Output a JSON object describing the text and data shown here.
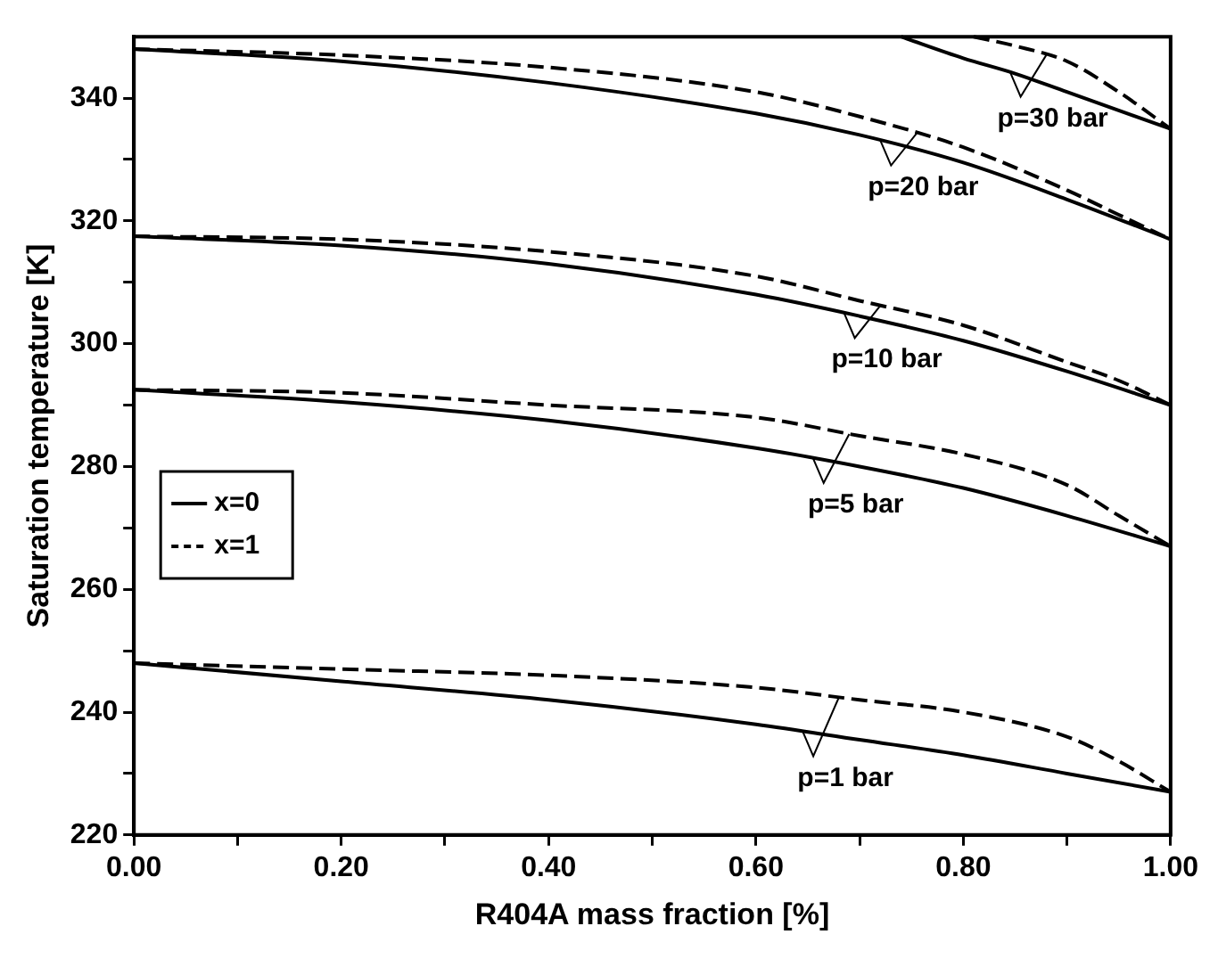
{
  "chart_data": {
    "type": "line",
    "xlabel": "R404A mass fraction [%]",
    "ylabel": "Saturation temperature [K]",
    "xlim": [
      0,
      1
    ],
    "ylim": [
      220,
      350
    ],
    "xticks": [
      {
        "value": 0,
        "label": "0.00"
      },
      {
        "value": 0.1,
        "label": null
      },
      {
        "value": 0.2,
        "label": "0.20"
      },
      {
        "value": 0.3,
        "label": null
      },
      {
        "value": 0.4,
        "label": "0.40"
      },
      {
        "value": 0.5,
        "label": null
      },
      {
        "value": 0.6,
        "label": "0.60"
      },
      {
        "value": 0.7,
        "label": null
      },
      {
        "value": 0.8,
        "label": "0.80"
      },
      {
        "value": 0.9,
        "label": null
      },
      {
        "value": 1,
        "label": "1.00"
      }
    ],
    "yticks": [
      220,
      {
        "value": 230,
        "label": null
      },
      240,
      {
        "value": 250,
        "label": null
      },
      260,
      {
        "value": 270,
        "label": null
      },
      280,
      {
        "value": 290,
        "label": null
      },
      300,
      {
        "value": 310,
        "label": null
      },
      320,
      {
        "value": 330,
        "label": null
      },
      340
    ],
    "grid": false,
    "legend": "left",
    "marker": "none",
    "series": [
      {
        "name": "x=0",
        "color": "#000000",
        "line_style": "solid",
        "x": [
          0,
          0.2,
          0.4,
          0.6,
          0.7,
          0.8,
          0.9,
          1
        ],
        "values": [
          248,
          245,
          242,
          238,
          235.5,
          233,
          230,
          227
        ]
      },
      {
        "name": "x=1",
        "color": "#000000",
        "line_style": "dashed",
        "x": [
          0,
          0.2,
          0.4,
          0.6,
          0.7,
          0.8,
          0.9,
          0.95,
          1
        ],
        "values": [
          248,
          247,
          246,
          244,
          242,
          240,
          236,
          232,
          227
        ]
      },
      {
        "color": "#000000",
        "line_style": "solid",
        "x": [
          0,
          0.2,
          0.4,
          0.6,
          0.7,
          0.8,
          0.9,
          1
        ],
        "values": [
          292.5,
          290.5,
          287.5,
          283,
          280,
          276.5,
          272,
          267
        ]
      },
      {
        "color": "#000000",
        "line_style": "dashed",
        "x": [
          0,
          0.2,
          0.4,
          0.6,
          0.7,
          0.8,
          0.9,
          0.95,
          1
        ],
        "values": [
          292.5,
          292,
          290,
          288,
          285,
          282,
          277,
          272,
          267
        ]
      },
      {
        "color": "#000000",
        "line_style": "solid",
        "x": [
          0,
          0.2,
          0.4,
          0.6,
          0.7,
          0.8,
          0.9,
          1
        ],
        "values": [
          317.5,
          316,
          313,
          308,
          304.5,
          300.5,
          295.5,
          290
        ]
      },
      {
        "color": "#000000",
        "line_style": "dashed",
        "x": [
          0,
          0.2,
          0.4,
          0.6,
          0.7,
          0.8,
          0.9,
          0.95,
          1
        ],
        "values": [
          317.5,
          317,
          315,
          311,
          307,
          303,
          297,
          294,
          290
        ]
      },
      {
        "color": "#000000",
        "line_style": "solid",
        "x": [
          0,
          0.2,
          0.4,
          0.6,
          0.7,
          0.8,
          0.9,
          1
        ],
        "values": [
          348,
          346,
          342.5,
          337.5,
          334,
          329.5,
          323.5,
          317
        ]
      },
      {
        "color": "#000000",
        "line_style": "dashed",
        "x": [
          0,
          0.2,
          0.4,
          0.6,
          0.7,
          0.8,
          0.9,
          0.95,
          1
        ],
        "values": [
          348,
          347,
          345,
          341,
          337,
          332,
          325,
          321,
          317
        ]
      },
      {
        "color": "#000000",
        "line_style": "solid",
        "x": [
          0.74,
          0.8,
          0.85,
          0.9,
          1
        ],
        "values": [
          350,
          346.5,
          344,
          341,
          335
        ]
      },
      {
        "color": "#000000",
        "line_style": "dashed",
        "x": [
          0.81,
          0.85,
          0.9,
          0.95,
          1
        ],
        "values": [
          350,
          348.5,
          346,
          341,
          335
        ]
      }
    ],
    "annotations": [
      {
        "text": "p=1 bar",
        "x": 0.645,
        "y": 236.9
      },
      {
        "text": "p=5 bar",
        "x": 0.655,
        "y": 281.4
      },
      {
        "text": "p=10 bar",
        "x": 0.685,
        "y": 305
      },
      {
        "text": "p=20 bar",
        "x": 0.72,
        "y": 333.1
      },
      {
        "text": "p=30 bar",
        "x": 0.845,
        "y": 344.3
      }
    ]
  }
}
